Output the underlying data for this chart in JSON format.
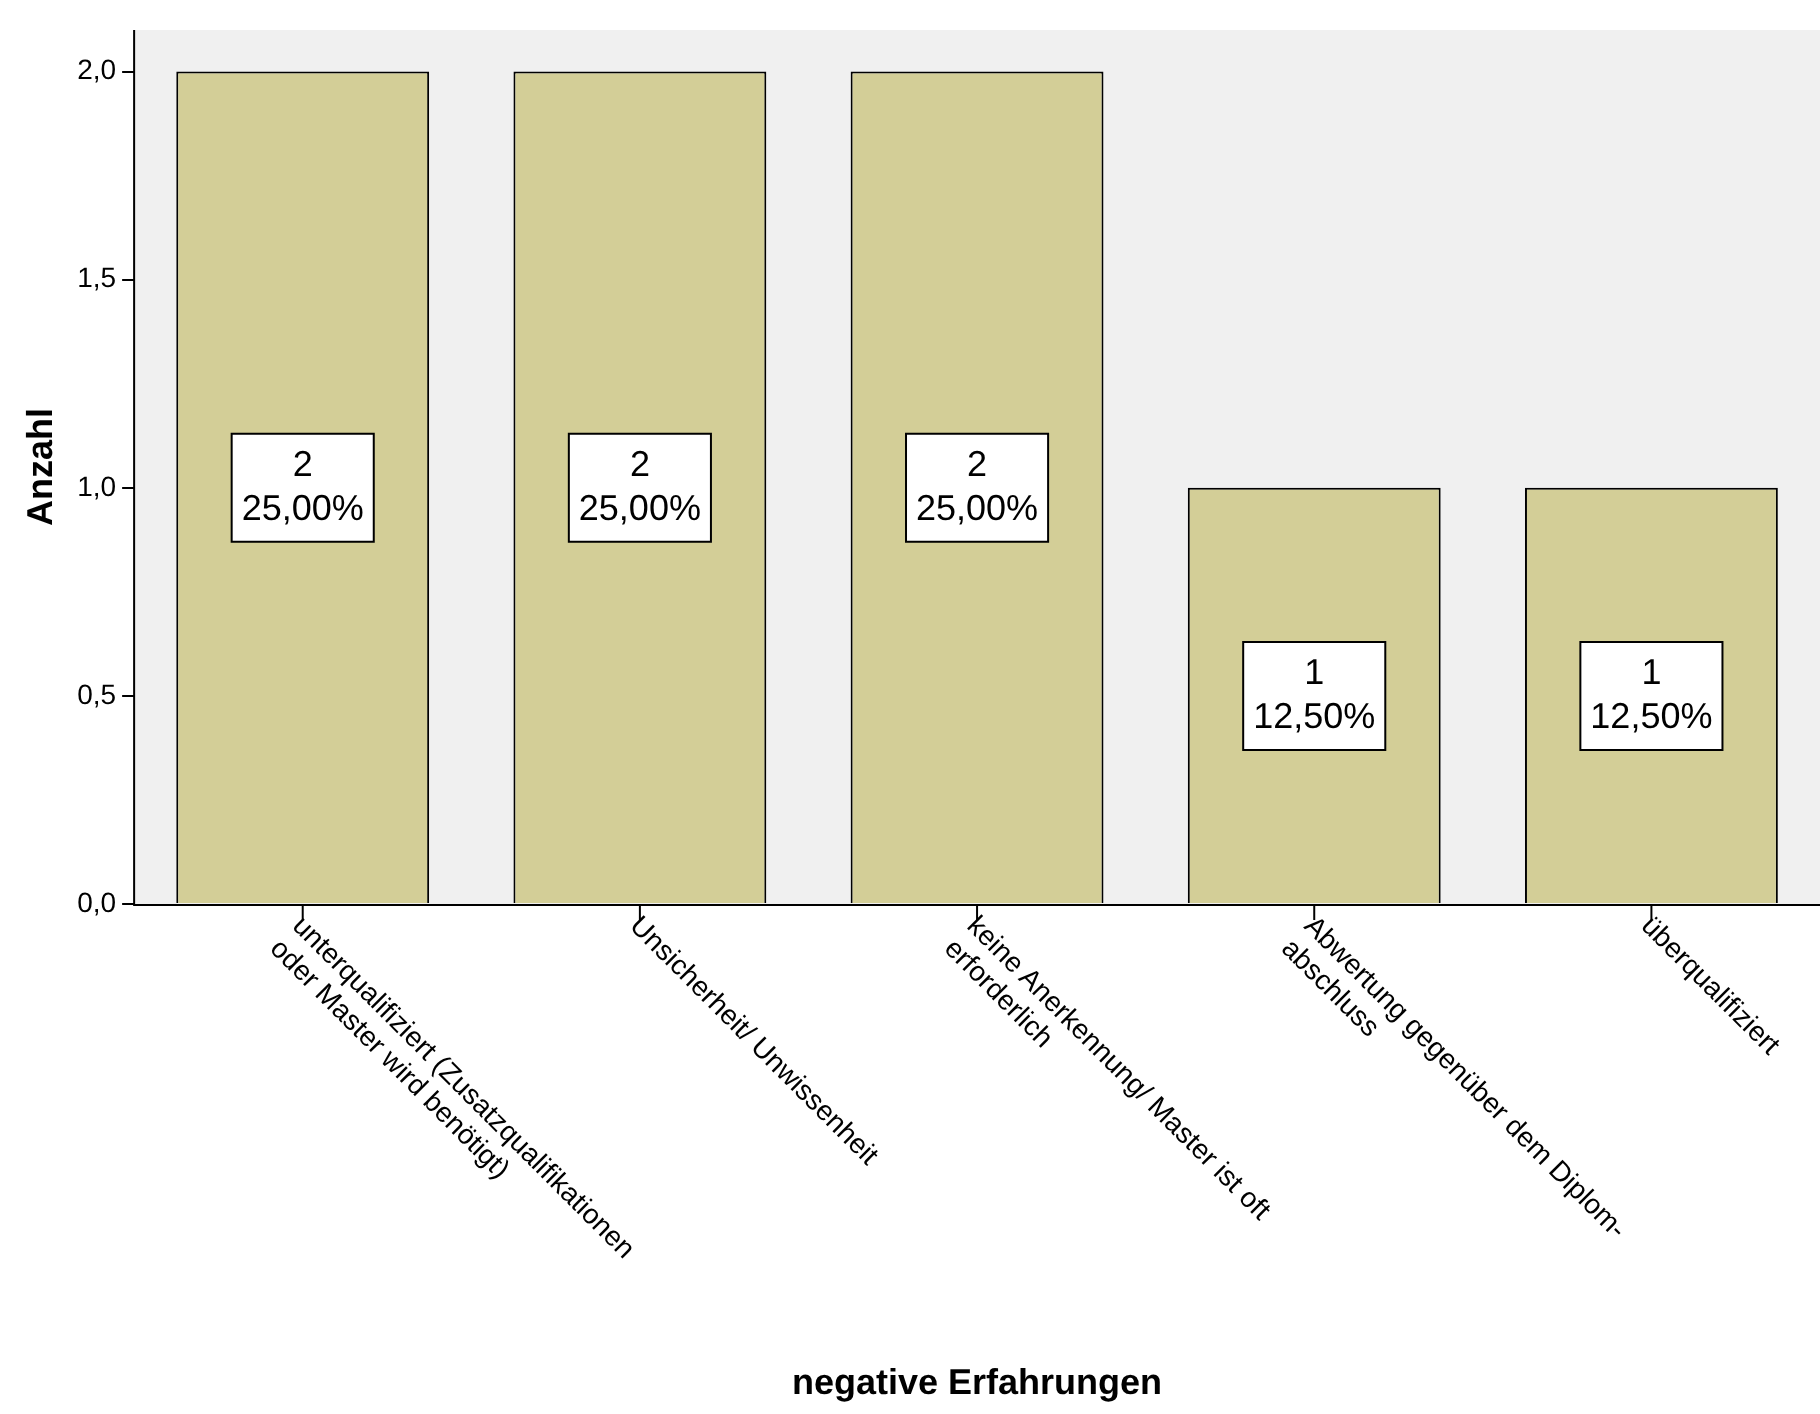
{
  "chart_data": {
    "type": "bar",
    "xlabel": "negative Erfahrungen",
    "ylabel": "Anzahl",
    "categories": [
      "unterqualifiziert (Zusatzqualifikationen\noder Master wird benötigt)",
      "Unsicherheit/ Unwissenheit",
      "keine Anerkennung/ Master ist oft\nerforderlich",
      "Abwertung gegenüber dem Diplom-\nabschluss",
      "überqualifiziert"
    ],
    "values": [
      2,
      2,
      2,
      1,
      1
    ],
    "color": "#d3ce97",
    "value_labels": [
      "2\n25,00%",
      "2\n25,00%",
      "2\n25,00%",
      "1\n12,50%",
      "1\n12,50%"
    ],
    "ylim": [
      0,
      2.1
    ],
    "yticks": [
      {
        "value": 0,
        "label": "0,0"
      },
      {
        "value": 0.5,
        "label": "0,5"
      },
      {
        "value": 1,
        "label": "1,0"
      },
      {
        "value": 1.5,
        "label": "1,5"
      },
      {
        "value": 2,
        "label": "2,0"
      }
    ],
    "grid": false,
    "legend": false
  }
}
